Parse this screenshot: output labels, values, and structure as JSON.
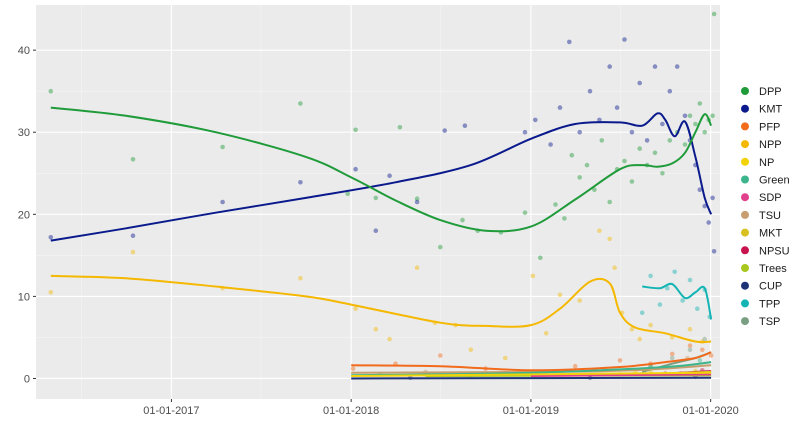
{
  "chart_data": {
    "type": "scatter",
    "title": "",
    "xlabel": "",
    "ylabel": "",
    "x_axis": {
      "type": "date",
      "range": [
        "2016-04-01",
        "2020-01-20"
      ],
      "ticks": [
        "2017-01-01",
        "2018-01-01",
        "2019-01-01",
        "2020-01-01"
      ],
      "tick_labels": [
        "01-01-2017",
        "01-01-2018",
        "01-01-2019",
        "01-01-2020"
      ]
    },
    "y_axis": {
      "range": [
        -2.5,
        45.5
      ],
      "ticks": [
        0,
        10,
        20,
        30,
        40
      ],
      "tick_labels": [
        "0",
        "10",
        "20",
        "30",
        "40"
      ]
    },
    "grid": true,
    "legend_position": "right",
    "series": [
      {
        "name": "DPP",
        "color": "#1f9b3a",
        "points": [
          [
            "2016-05-01",
            35
          ],
          [
            "2016-10-15",
            26.7
          ],
          [
            "2017-04-15",
            28.2
          ],
          [
            "2017-09-20",
            33.5
          ],
          [
            "2017-12-25",
            22.5
          ],
          [
            "2018-01-10",
            30.3
          ],
          [
            "2018-02-20",
            22
          ],
          [
            "2018-04-10",
            30.6
          ],
          [
            "2018-05-15",
            21.9
          ],
          [
            "2018-07-01",
            16
          ],
          [
            "2018-08-15",
            19.3
          ],
          [
            "2018-09-15",
            18
          ],
          [
            "2018-11-01",
            17.8
          ],
          [
            "2018-12-20",
            20.2
          ],
          [
            "2019-01-20",
            14.7
          ],
          [
            "2019-02-20",
            21.2
          ],
          [
            "2019-03-10",
            19.5
          ],
          [
            "2019-03-25",
            27.2
          ],
          [
            "2019-04-10",
            24.5
          ],
          [
            "2019-04-25",
            26
          ],
          [
            "2019-05-10",
            23
          ],
          [
            "2019-05-25",
            29
          ],
          [
            "2019-06-10",
            21.5
          ],
          [
            "2019-06-25",
            25.5
          ],
          [
            "2019-07-10",
            26.5
          ],
          [
            "2019-07-25",
            24
          ],
          [
            "2019-08-10",
            28
          ],
          [
            "2019-08-25",
            26
          ],
          [
            "2019-09-10",
            27.5
          ],
          [
            "2019-09-25",
            25
          ],
          [
            "2019-10-10",
            29
          ],
          [
            "2019-10-25",
            30
          ],
          [
            "2019-11-10",
            28.5
          ],
          [
            "2019-11-20",
            32
          ],
          [
            "2019-12-01",
            31
          ],
          [
            "2019-12-10",
            33.5
          ],
          [
            "2019-12-20",
            30
          ],
          [
            "2019-12-28",
            31.5
          ],
          [
            "2020-01-05",
            32
          ],
          [
            "2020-01-08",
            44.4
          ]
        ],
        "trend": [
          [
            "2016-05-01",
            33
          ],
          [
            "2016-10-01",
            32
          ],
          [
            "2017-04-01",
            30
          ],
          [
            "2017-10-01",
            27
          ],
          [
            "2018-01-01",
            24.5
          ],
          [
            "2018-04-01",
            21.7
          ],
          [
            "2018-07-01",
            19.3
          ],
          [
            "2018-10-01",
            18
          ],
          [
            "2019-01-01",
            18.5
          ],
          [
            "2019-04-01",
            21.8
          ],
          [
            "2019-07-01",
            25.5
          ],
          [
            "2019-08-15",
            26
          ],
          [
            "2019-09-15",
            25.8
          ],
          [
            "2019-10-15",
            26.2
          ],
          [
            "2019-11-10",
            27.5
          ],
          [
            "2019-12-01",
            30
          ],
          [
            "2019-12-20",
            32.2
          ],
          [
            "2020-01-02",
            30.8
          ]
        ]
      },
      {
        "name": "KMT",
        "color": "#0a1a8c",
        "points": [
          [
            "2016-05-01",
            17.2
          ],
          [
            "2016-10-15",
            17.4
          ],
          [
            "2017-04-15",
            21.5
          ],
          [
            "2017-09-20",
            23.9
          ],
          [
            "2018-01-10",
            25.5
          ],
          [
            "2018-02-20",
            18
          ],
          [
            "2018-03-20",
            24.7
          ],
          [
            "2018-05-15",
            21.5
          ],
          [
            "2018-07-10",
            30.2
          ],
          [
            "2018-08-20",
            30.8
          ],
          [
            "2018-12-20",
            30
          ],
          [
            "2019-01-10",
            31.5
          ],
          [
            "2019-02-10",
            28.5
          ],
          [
            "2019-03-01",
            33
          ],
          [
            "2019-03-20",
            41
          ],
          [
            "2019-04-10",
            30
          ],
          [
            "2019-05-01",
            35
          ],
          [
            "2019-05-20",
            31.5
          ],
          [
            "2019-06-10",
            38
          ],
          [
            "2019-06-25",
            33
          ],
          [
            "2019-07-10",
            41.3
          ],
          [
            "2019-07-25",
            30
          ],
          [
            "2019-08-10",
            36
          ],
          [
            "2019-08-25",
            29
          ],
          [
            "2019-09-10",
            38
          ],
          [
            "2019-09-25",
            31
          ],
          [
            "2019-10-10",
            35
          ],
          [
            "2019-10-25",
            38
          ],
          [
            "2019-11-10",
            32
          ],
          [
            "2019-11-20",
            29
          ],
          [
            "2019-12-01",
            26
          ],
          [
            "2019-12-10",
            23
          ],
          [
            "2019-12-20",
            21
          ],
          [
            "2019-12-28",
            19
          ],
          [
            "2020-01-05",
            22
          ],
          [
            "2020-01-08",
            15.5
          ]
        ],
        "trend": [
          [
            "2016-05-01",
            16.8
          ],
          [
            "2016-10-01",
            18.3
          ],
          [
            "2017-04-01",
            20.2
          ],
          [
            "2017-10-01",
            22
          ],
          [
            "2018-04-01",
            23.9
          ],
          [
            "2018-09-01",
            26
          ],
          [
            "2019-01-01",
            29.2
          ],
          [
            "2019-04-01",
            31
          ],
          [
            "2019-07-01",
            31.2
          ],
          [
            "2019-08-15",
            30.8
          ],
          [
            "2019-09-15",
            32.3
          ],
          [
            "2019-10-01",
            31.5
          ],
          [
            "2019-10-20",
            29.5
          ],
          [
            "2019-11-10",
            31.3
          ],
          [
            "2019-12-01",
            27
          ],
          [
            "2019-12-20",
            22
          ],
          [
            "2020-01-02",
            20
          ]
        ]
      },
      {
        "name": "PFP",
        "color": "#f26a1b",
        "points": [
          [
            "2018-01-05",
            1.2
          ],
          [
            "2018-04-01",
            1.8
          ],
          [
            "2018-07-01",
            2.8
          ],
          [
            "2018-10-01",
            1.2
          ],
          [
            "2019-01-05",
            0.8
          ],
          [
            "2019-04-01",
            1.5
          ],
          [
            "2019-07-01",
            2.2
          ],
          [
            "2019-09-01",
            1.8
          ],
          [
            "2019-10-15",
            3
          ],
          [
            "2019-11-20",
            4
          ],
          [
            "2019-12-15",
            3.5
          ],
          [
            "2020-01-02",
            2.8
          ]
        ],
        "trend": [
          [
            "2018-01-01",
            1.6
          ],
          [
            "2018-07-01",
            1.5
          ],
          [
            "2019-01-01",
            1
          ],
          [
            "2019-07-01",
            1.4
          ],
          [
            "2019-10-01",
            2
          ],
          [
            "2019-12-01",
            2.5
          ],
          [
            "2020-01-02",
            3.2
          ]
        ]
      },
      {
        "name": "NPP",
        "color": "#f5b800",
        "points": [
          [
            "2016-05-01",
            10.5
          ],
          [
            "2016-10-15",
            15.4
          ],
          [
            "2017-04-15",
            11
          ],
          [
            "2017-09-20",
            12.2
          ],
          [
            "2018-01-10",
            8.5
          ],
          [
            "2018-02-20",
            6
          ],
          [
            "2018-03-20",
            4.8
          ],
          [
            "2018-05-15",
            13.5
          ],
          [
            "2018-06-20",
            6.8
          ],
          [
            "2018-08-01",
            6.5
          ],
          [
            "2018-09-01",
            3.5
          ],
          [
            "2018-11-10",
            2.5
          ],
          [
            "2019-01-05",
            12.5
          ],
          [
            "2019-02-01",
            5.5
          ],
          [
            "2019-03-01",
            10.2
          ],
          [
            "2019-04-10",
            9.5
          ],
          [
            "2019-05-20",
            18
          ],
          [
            "2019-06-10",
            17
          ],
          [
            "2019-06-20",
            13.5
          ],
          [
            "2019-07-05",
            8
          ],
          [
            "2019-07-25",
            6
          ],
          [
            "2019-08-10",
            4.8
          ],
          [
            "2019-09-01",
            6.5
          ],
          [
            "2019-10-15",
            5
          ],
          [
            "2019-11-20",
            6
          ],
          [
            "2019-12-15",
            4.5
          ]
        ],
        "trend": [
          [
            "2016-05-01",
            12.5
          ],
          [
            "2016-10-01",
            12.2
          ],
          [
            "2017-04-01",
            11.2
          ],
          [
            "2017-10-01",
            10
          ],
          [
            "2018-01-01",
            9
          ],
          [
            "2018-07-01",
            6.8
          ],
          [
            "2018-10-01",
            6.4
          ],
          [
            "2019-01-01",
            6.5
          ],
          [
            "2019-03-01",
            8.5
          ],
          [
            "2019-05-01",
            11.8
          ],
          [
            "2019-06-10",
            11.6
          ],
          [
            "2019-07-01",
            8
          ],
          [
            "2019-08-01",
            6.2
          ],
          [
            "2019-10-01",
            5.5
          ],
          [
            "2019-12-01",
            4.5
          ],
          [
            "2020-01-02",
            4.5
          ]
        ]
      },
      {
        "name": "NP",
        "color": "#f2d30a",
        "points": [
          [
            "2018-06-01",
            0.5
          ],
          [
            "2019-03-01",
            0.6
          ],
          [
            "2019-08-01",
            0.8
          ],
          [
            "2019-12-01",
            0.7
          ]
        ],
        "trend": [
          [
            "2018-01-01",
            0.3
          ],
          [
            "2019-01-01",
            0.5
          ],
          [
            "2020-01-02",
            0.7
          ]
        ]
      },
      {
        "name": "Green",
        "color": "#3cb48c",
        "points": [
          [
            "2018-03-01",
            0.5
          ],
          [
            "2019-02-01",
            0.8
          ],
          [
            "2019-09-01",
            1.5
          ],
          [
            "2019-12-10",
            2.2
          ]
        ],
        "trend": [
          [
            "2018-01-01",
            0.4
          ],
          [
            "2019-01-01",
            0.7
          ],
          [
            "2019-10-01",
            1.4
          ],
          [
            "2020-01-02",
            2
          ]
        ]
      },
      {
        "name": "SDP",
        "color": "#e0408c",
        "points": [
          [
            "2019-05-01",
            0.4
          ],
          [
            "2019-11-01",
            0.6
          ]
        ],
        "trend": [
          [
            "2019-01-01",
            0.3
          ],
          [
            "2020-01-02",
            0.5
          ]
        ]
      },
      {
        "name": "TSU",
        "color": "#c89e6e",
        "points": [
          [
            "2018-06-01",
            0.8
          ],
          [
            "2019-06-01",
            1.1
          ],
          [
            "2019-11-15",
            2.5
          ]
        ],
        "trend": [
          [
            "2018-01-01",
            0.7
          ],
          [
            "2019-06-01",
            0.9
          ],
          [
            "2020-01-02",
            1.6
          ]
        ]
      },
      {
        "name": "MKT",
        "color": "#d8c020",
        "points": [
          [
            "2019-09-01",
            0.7
          ],
          [
            "2019-12-01",
            0.9
          ]
        ],
        "trend": [
          [
            "2019-08-01",
            0.5
          ],
          [
            "2020-01-02",
            0.8
          ]
        ]
      },
      {
        "name": "NPSU",
        "color": "#c8144e",
        "points": [
          [
            "2019-10-01",
            0.6
          ],
          [
            "2019-12-15",
            1
          ]
        ],
        "trend": [
          [
            "2019-09-01",
            0.5
          ],
          [
            "2020-01-02",
            0.9
          ]
        ]
      },
      {
        "name": "Trees",
        "color": "#a8c820",
        "points": [
          [
            "2018-09-01",
            0.3
          ],
          [
            "2019-07-01",
            0.5
          ]
        ],
        "trend": [
          [
            "2018-06-01",
            0.3
          ],
          [
            "2020-01-02",
            0.4
          ]
        ]
      },
      {
        "name": "CUP",
        "color": "#1e3278",
        "points": [
          [
            "2018-05-01",
            0.1
          ],
          [
            "2019-05-01",
            0.1
          ],
          [
            "2019-12-01",
            0.2
          ]
        ],
        "trend": [
          [
            "2018-01-01",
            0
          ],
          [
            "2020-01-02",
            0.1
          ]
        ]
      },
      {
        "name": "TPP",
        "color": "#14b4b4",
        "points": [
          [
            "2019-08-15",
            8
          ],
          [
            "2019-09-01",
            12.5
          ],
          [
            "2019-09-20",
            9
          ],
          [
            "2019-10-05",
            11
          ],
          [
            "2019-10-20",
            13
          ],
          [
            "2019-11-05",
            9.5
          ],
          [
            "2019-11-20",
            12
          ],
          [
            "2019-12-05",
            8.5
          ],
          [
            "2019-12-20",
            10.8
          ],
          [
            "2019-12-30",
            7.5
          ]
        ],
        "trend": [
          [
            "2019-08-15",
            11.2
          ],
          [
            "2019-09-20",
            11
          ],
          [
            "2019-10-15",
            11.5
          ],
          [
            "2019-11-10",
            9.8
          ],
          [
            "2019-12-01",
            10.5
          ],
          [
            "2019-12-20",
            11
          ],
          [
            "2020-01-02",
            7.2
          ]
        ]
      },
      {
        "name": "TSP",
        "color": "#7a9e82",
        "points": [
          [
            "2019-09-01",
            1.5
          ],
          [
            "2019-10-15",
            2.5
          ],
          [
            "2019-11-20",
            3.5
          ],
          [
            "2019-12-20",
            4.8
          ]
        ],
        "trend": [
          [
            "2019-08-15",
            0.8
          ],
          [
            "2019-10-15",
            1.8
          ],
          [
            "2019-12-01",
            2.5
          ],
          [
            "2020-01-02",
            3.2
          ]
        ]
      }
    ]
  }
}
